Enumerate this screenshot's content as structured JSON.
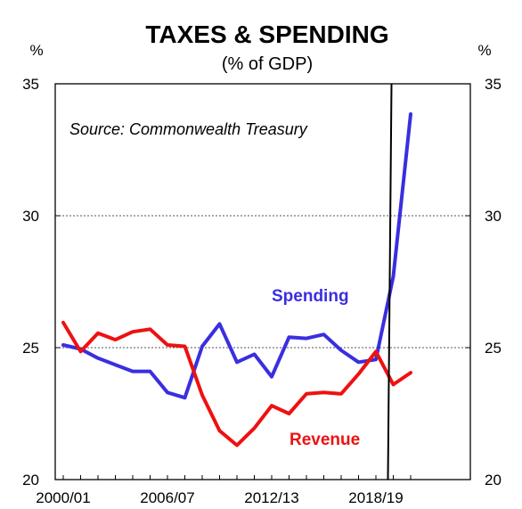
{
  "chart_data": {
    "type": "line",
    "title": "TAXES & SPENDING",
    "subtitle": "(% of GDP)",
    "unit_left": "%",
    "unit_right": "%",
    "source": "Source: Commonwealth Treasury",
    "ylim": [
      20,
      35
    ],
    "yticks": [
      20,
      25,
      30,
      35
    ],
    "x_tick_labels": [
      "2000/01",
      "2006/07",
      "2012/13",
      "2018/19"
    ],
    "x": [
      "2000/01",
      "2001/02",
      "2002/03",
      "2003/04",
      "2004/05",
      "2005/06",
      "2006/07",
      "2007/08",
      "2008/09",
      "2009/10",
      "2010/11",
      "2011/12",
      "2012/13",
      "2013/14",
      "2014/15",
      "2015/16",
      "2016/17",
      "2017/18",
      "2018/19",
      "2019/20",
      "2020/21"
    ],
    "gridlines": "dashed at 25 and 30",
    "vertical_marker": "2019/20",
    "series": [
      {
        "name": "Spending",
        "color": "#3a2ee0",
        "values": [
          25.1,
          24.95,
          24.6,
          24.35,
          24.1,
          24.1,
          23.3,
          23.1,
          25.05,
          25.9,
          24.45,
          24.75,
          23.9,
          25.4,
          25.35,
          25.5,
          24.9,
          24.45,
          24.55,
          27.7,
          33.85
        ]
      },
      {
        "name": "Revenue",
        "color": "#ee1111",
        "values": [
          25.95,
          24.85,
          25.55,
          25.3,
          25.6,
          25.7,
          25.1,
          25.05,
          23.2,
          21.85,
          21.3,
          21.95,
          22.8,
          22.5,
          23.25,
          23.3,
          23.25,
          24.0,
          24.85,
          23.6,
          24.05
        ]
      }
    ]
  }
}
